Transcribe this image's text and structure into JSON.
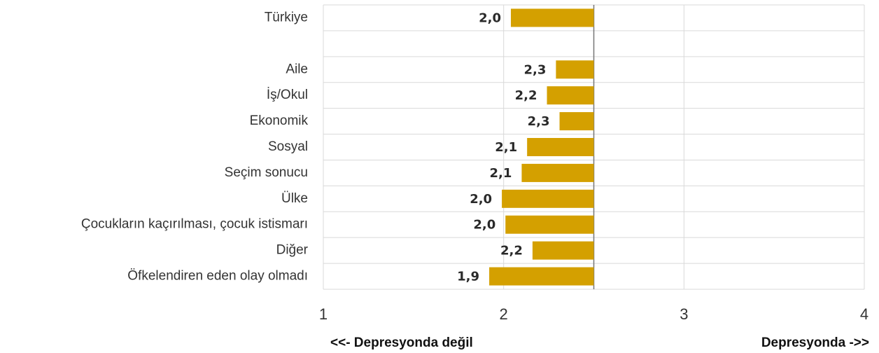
{
  "chart_data": {
    "type": "bar",
    "orientation": "horizontal",
    "categories": [
      "Türkiye",
      null,
      "Aile",
      "İş/Okul",
      "Ekonomik",
      "Sosyal",
      "Seçim sonucu",
      "Ülke",
      "Çocukların kaçırılması, çocuk istismarı",
      "Diğer",
      "Öfkelendiren eden olay olmadı"
    ],
    "values": [
      2.04,
      null,
      2.29,
      2.24,
      2.31,
      2.13,
      2.1,
      1.99,
      2.01,
      2.16,
      1.92
    ],
    "value_labels": [
      "2,0",
      null,
      "2,3",
      "2,2",
      "2,3",
      "2,1",
      "2,1",
      "2,0",
      "2,0",
      "2,2",
      "1,9"
    ],
    "base": 2.5,
    "color": "#d4a000",
    "xlim": [
      1,
      4
    ],
    "xticks": [
      1,
      2,
      3,
      4
    ],
    "grid": true,
    "x_label_left": "<<- Depresyonda değil",
    "x_label_right": "Depresyonda ->>"
  }
}
